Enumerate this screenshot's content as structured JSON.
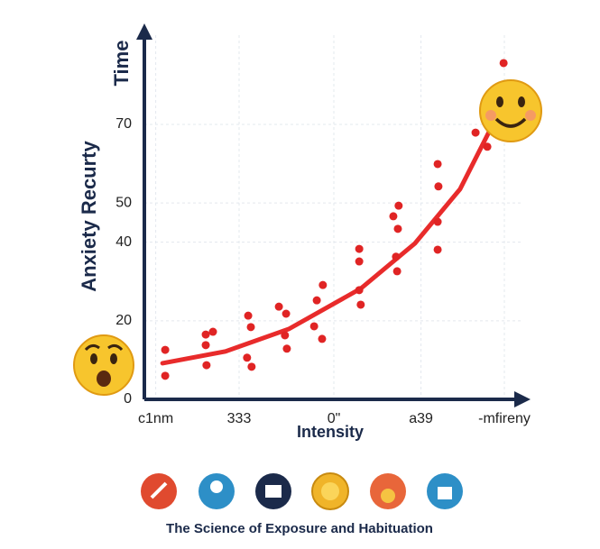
{
  "chart_data": {
    "type": "scatter",
    "title": "The Science of Exposure and Habituation",
    "y_axis_label": "Anxiety Recurty",
    "y_axis_top_label": "Time",
    "x_axis_label": "Intensity",
    "xlim": [
      0,
      10
    ],
    "ylim": [
      0,
      95
    ],
    "xticks": [
      {
        "value": 0.3,
        "label": "c1nm"
      },
      {
        "value": 2.5,
        "label": "333"
      },
      {
        "value": 5,
        "label": "0\""
      },
      {
        "value": 7.3,
        "label": "a39"
      },
      {
        "value": 9.5,
        "label": "-mfireny"
      }
    ],
    "yticks": [
      0,
      20,
      40,
      50,
      70
    ],
    "grid": true,
    "points": {
      "color": "#e02424",
      "x": [
        0.55,
        0.55,
        1.62,
        1.81,
        1.62,
        1.64,
        2.71,
        2.83,
        2.74,
        2.81,
        3.55,
        3.71,
        3.76,
        3.74,
        4.55,
        4.71,
        4.69,
        4.48,
        5.67,
        5.67,
        5.67,
        5.71,
        6.57,
        6.71,
        6.69,
        6.64,
        6.67,
        7.74,
        7.76,
        7.74,
        7.74,
        8.74,
        9.05,
        9.48
      ],
      "y": [
        12.6,
        6.0,
        16.5,
        17.2,
        13.8,
        8.7,
        10.6,
        8.3,
        21.3,
        18.4,
        23.6,
        16.3,
        12.9,
        21.8,
        25.2,
        29.1,
        15.4,
        18.6,
        38.3,
        35.1,
        27.8,
        24.1,
        46.6,
        49.3,
        43.4,
        36.3,
        32.6,
        59.9,
        54.2,
        45.2,
        38.1,
        67.9,
        64.3,
        85.6
      ]
    },
    "curve": {
      "color": "#e82b2b",
      "x": [
        0.48,
        2.14,
        3.81,
        5.71,
        7.14,
        8.33,
        9.17
      ],
      "y": [
        9.2,
        12.2,
        17.9,
        28.2,
        39.7,
        53.5,
        69.5
      ]
    }
  }
}
